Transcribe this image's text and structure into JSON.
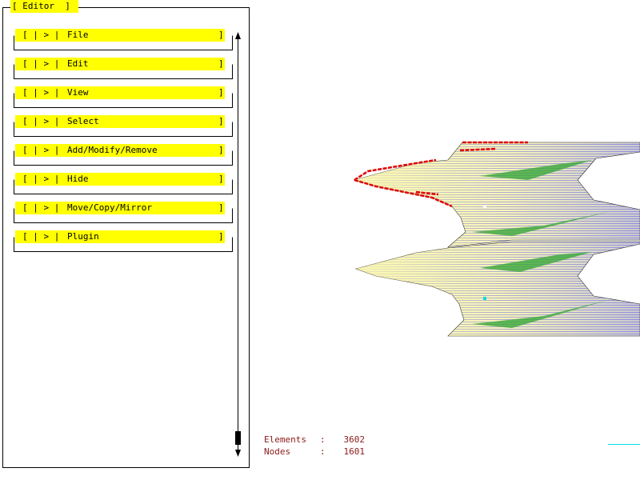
{
  "panel": {
    "title": "[ Editor  ]",
    "menu": [
      {
        "prefix": "[ | > |",
        "label": "File",
        "end": "]"
      },
      {
        "prefix": "[ | > |",
        "label": "Edit",
        "end": "]"
      },
      {
        "prefix": "[ | > |",
        "label": "View",
        "end": "]"
      },
      {
        "prefix": "[ | > |",
        "label": "Select",
        "end": "]"
      },
      {
        "prefix": "[ | > |",
        "label": "Add/Modify/Remove",
        "end": "]"
      },
      {
        "prefix": "[ | > |",
        "label": "Hide",
        "end": "]"
      },
      {
        "prefix": "[ | > |",
        "label": "Move/Copy/Mirror",
        "end": "]"
      },
      {
        "prefix": "[ | > |",
        "label": "Plugin",
        "end": "]"
      }
    ]
  },
  "stats": [
    {
      "label": "Elements",
      "sep": ":",
      "value": 3602
    },
    {
      "label": "Nodes",
      "sep": ":",
      "value": 1601
    }
  ]
}
